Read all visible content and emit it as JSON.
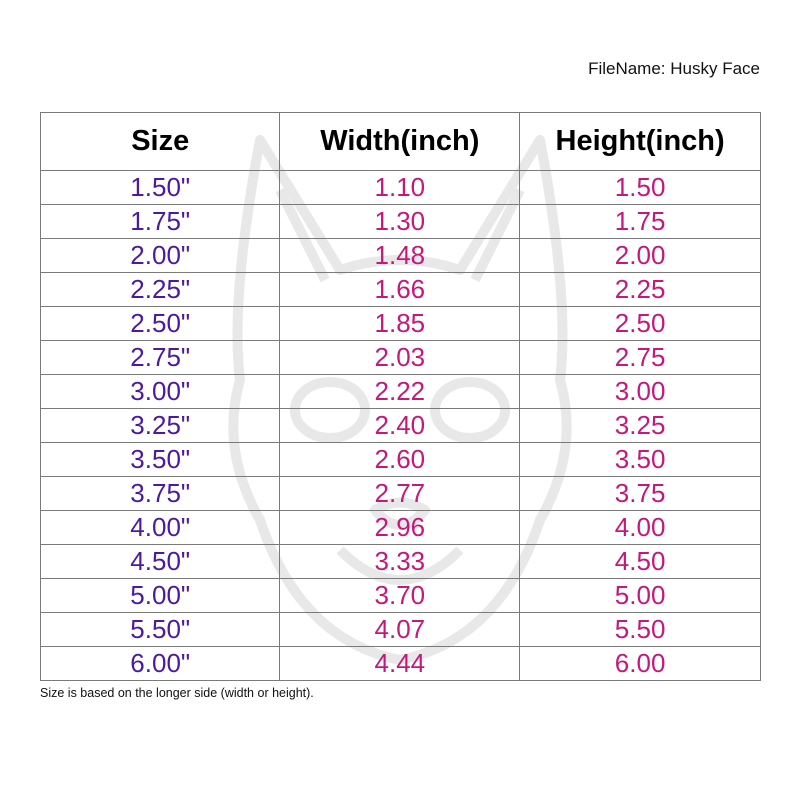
{
  "file_name": "FileName: Husky Face",
  "watermark": "husky-face-icon",
  "colors": {
    "size": "#4b1aa0",
    "value": "#c4187c"
  },
  "table": {
    "headers": [
      "Size",
      "Width(inch)",
      "Height(inch)"
    ],
    "rows": [
      [
        "1.50\"",
        "1.10",
        "1.50"
      ],
      [
        "1.75\"",
        "1.30",
        "1.75"
      ],
      [
        "2.00\"",
        "1.48",
        "2.00"
      ],
      [
        "2.25\"",
        "1.66",
        "2.25"
      ],
      [
        "2.50\"",
        "1.85",
        "2.50"
      ],
      [
        "2.75\"",
        "2.03",
        "2.75"
      ],
      [
        "3.00\"",
        "2.22",
        "3.00"
      ],
      [
        "3.25\"",
        "2.40",
        "3.25"
      ],
      [
        "3.50\"",
        "2.60",
        "3.50"
      ],
      [
        "3.75\"",
        "2.77",
        "3.75"
      ],
      [
        "4.00\"",
        "2.96",
        "4.00"
      ],
      [
        "4.50\"",
        "3.33",
        "4.50"
      ],
      [
        "5.00\"",
        "3.70",
        "5.00"
      ],
      [
        "5.50\"",
        "4.07",
        "5.50"
      ],
      [
        "6.00\"",
        "4.44",
        "6.00"
      ]
    ]
  },
  "note": "Size is based on the longer side (width or height)."
}
